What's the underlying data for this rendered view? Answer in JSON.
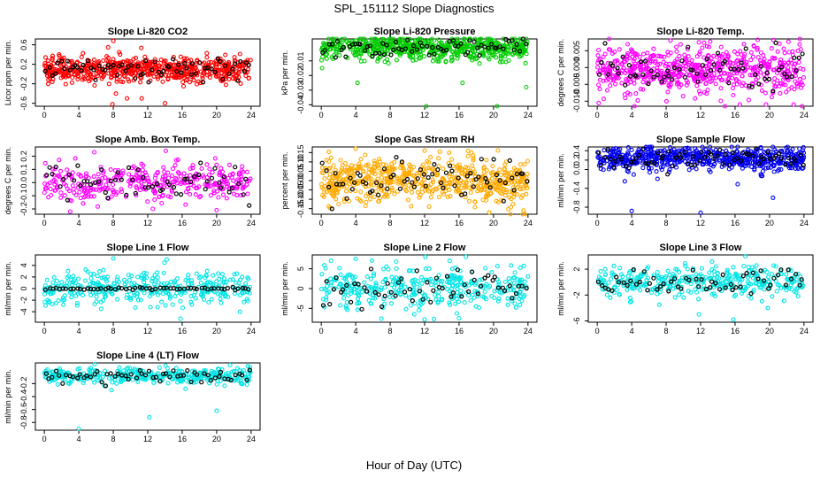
{
  "figure": {
    "title": "SPL_151112  Slope Diagnostics",
    "xlabel": "Hour of Day (UTC)"
  },
  "chart_data": [
    {
      "type": "scatter",
      "title": "Slope Li-820 CO2",
      "ylabel": "Licor ppm per min.",
      "xlim": [
        0,
        24
      ],
      "xticks": [
        "0",
        "4",
        "8",
        "12",
        "16",
        "20",
        "24"
      ],
      "yticks": [
        "-0.6",
        "-0.2",
        "0.2",
        "0.6"
      ],
      "ytick_values": [
        -0.6,
        -0.2,
        0.2,
        0.6
      ],
      "ylim": [
        -0.66,
        0.72
      ],
      "color": "#ff0000",
      "density": "dense",
      "center": 0.1,
      "spread": 0.13,
      "outliers": [
        [
          7.4,
          0.55
        ],
        [
          8.0,
          0.68
        ],
        [
          8.3,
          -0.4
        ],
        [
          9.6,
          -0.5
        ],
        [
          8.8,
          0.4
        ],
        [
          14.0,
          -0.6
        ],
        [
          7.9,
          -0.62
        ],
        [
          11.3,
          -0.5
        ]
      ]
    },
    {
      "type": "scatter",
      "title": "Slope Li-820 Pressure",
      "ylabel": "kPa per min.",
      "xlim": [
        0,
        24
      ],
      "xticks": [
        "0",
        "4",
        "8",
        "12",
        "16",
        "20",
        "24"
      ],
      "yticks": [
        "-0.04",
        "-0.03",
        "-0.02",
        "-0.01"
      ],
      "ytick_values": [
        -0.04,
        -0.03,
        -0.02,
        -0.01
      ],
      "ylim": [
        -0.041,
        0.005
      ],
      "color": "#00cc00",
      "density": "dense",
      "center": -0.001,
      "spread": 0.004,
      "outliers": [
        [
          4.2,
          -0.025
        ],
        [
          12.2,
          -0.041
        ],
        [
          16.4,
          -0.025
        ],
        [
          20.4,
          -0.041
        ],
        [
          23.8,
          -0.028
        ],
        [
          0.1,
          -0.015
        ]
      ]
    },
    {
      "type": "scatter",
      "title": "Slope Li-820 Temp.",
      "ylabel": "degrees C per min.",
      "xlim": [
        0,
        24
      ],
      "xticks": [
        "0",
        "4",
        "8",
        "12",
        "16",
        "20",
        "24"
      ],
      "yticks": [
        "-0.010",
        "-0.005",
        "0.000",
        "0.005"
      ],
      "ytick_values": [
        -0.01,
        -0.005,
        0.0,
        0.005
      ],
      "ylim": [
        -0.0115,
        0.0085
      ],
      "color": "#ff00ff",
      "density": "dense",
      "center": -0.0005,
      "spread": 0.0035,
      "outliers": [
        [
          8.5,
          0.008
        ],
        [
          3.2,
          -0.008
        ],
        [
          19.6,
          -0.011
        ],
        [
          22.8,
          -0.011
        ],
        [
          11.8,
          0.0075
        ]
      ]
    },
    {
      "type": "scatter",
      "title": "Slope Amb. Box Temp.",
      "ylabel": "degrees C per min.",
      "xlim": [
        0,
        24
      ],
      "xticks": [
        "0",
        "4",
        "8",
        "12",
        "16",
        "20",
        "24"
      ],
      "yticks": [
        "-0.2",
        "-0.1",
        "0.0",
        "0.1",
        "0.2"
      ],
      "ytick_values": [
        -0.2,
        -0.1,
        0.0,
        0.1,
        0.2
      ],
      "ylim": [
        -0.24,
        0.27
      ],
      "color": "#ff00ff",
      "density": "medium",
      "center": 0.0,
      "spread": 0.07,
      "outliers": [
        [
          12.6,
          -0.2
        ],
        [
          5.8,
          0.23
        ],
        [
          3.0,
          -0.22
        ],
        [
          20.0,
          -0.21
        ],
        [
          14.1,
          0.24
        ]
      ]
    },
    {
      "type": "scatter",
      "title": "Slope Gas Stream RH",
      "ylabel": "percent per min.",
      "xlim": [
        0,
        24
      ],
      "xticks": [
        "0",
        "4",
        "8",
        "12",
        "16",
        "20",
        "24"
      ],
      "yticks": [
        "-0.15",
        "-0.10",
        "-0.05",
        "0.00",
        "0.05",
        "0.10",
        "0.15"
      ],
      "ytick_values": [
        -0.15,
        -0.1,
        -0.05,
        0.0,
        0.05,
        0.1,
        0.15
      ],
      "ylim": [
        -0.18,
        0.18
      ],
      "color": "#ffaa00",
      "density": "dense",
      "center": 0.0,
      "spread": 0.06,
      "outliers": [
        [
          4.0,
          0.17
        ],
        [
          19.5,
          -0.17
        ],
        [
          12.0,
          0.16
        ],
        [
          23.5,
          -0.16
        ]
      ]
    },
    {
      "type": "scatter",
      "title": "Slope Sample Flow",
      "ylabel": "ml/min per min.",
      "xlim": [
        0,
        24
      ],
      "xticks": [
        "0",
        "4",
        "8",
        "12",
        "16",
        "20",
        "24"
      ],
      "yticks": [
        "-0.8",
        "-0.4",
        "0.0",
        "0.2",
        "0.4"
      ],
      "ytick_values": [
        -0.8,
        -0.4,
        0.0,
        0.2,
        0.4
      ],
      "ylim": [
        -0.95,
        0.48
      ],
      "color": "#0000ee",
      "density": "dense",
      "center": 0.22,
      "spread": 0.12,
      "outliers": [
        [
          4.0,
          -0.88
        ],
        [
          12.0,
          -0.92
        ],
        [
          20.4,
          -0.6
        ],
        [
          3.2,
          -0.25
        ],
        [
          17.5,
          0.42
        ],
        [
          7.0,
          -0.2
        ]
      ]
    },
    {
      "type": "scatter",
      "title": "Slope Line 1 Flow",
      "ylabel": "ml/min per min.",
      "xlim": [
        0,
        24
      ],
      "xticks": [
        "0",
        "4",
        "8",
        "12",
        "16",
        "20",
        "24"
      ],
      "yticks": [
        "-4",
        "-2",
        "0",
        "2",
        "4"
      ],
      "ytick_values": [
        -4,
        -2,
        0,
        2,
        4
      ],
      "ylim": [
        -5.8,
        5.8
      ],
      "color": "#00e5e5",
      "density": "medium",
      "center": 0.0,
      "spread": 1.4,
      "black_flat": true,
      "outliers": [
        [
          8.0,
          5.2
        ],
        [
          14.2,
          5.0
        ],
        [
          15.8,
          -5.2
        ],
        [
          6.6,
          -3.5
        ],
        [
          2.2,
          -2.8
        ]
      ]
    },
    {
      "type": "scatter",
      "title": "Slope Line 2 Flow",
      "ylabel": "ml/min per min.",
      "xlim": [
        0,
        24
      ],
      "xticks": [
        "0",
        "4",
        "8",
        "12",
        "16",
        "20",
        "24"
      ],
      "yticks": [
        "-5",
        "0",
        "5"
      ],
      "ytick_values": [
        -5,
        0,
        5
      ],
      "ylim": [
        -8.5,
        8.5
      ],
      "color": "#00e5e5",
      "density": "medium",
      "center": 0.2,
      "spread": 2.6,
      "outliers": [
        [
          4.0,
          7.5
        ],
        [
          16.8,
          8.0
        ],
        [
          16.0,
          -7.5
        ],
        [
          12.0,
          -7.8
        ],
        [
          10.8,
          -6.5
        ]
      ]
    },
    {
      "type": "scatter",
      "title": "Slope Line 3 Flow",
      "ylabel": "ml/min per min.",
      "xlim": [
        0,
        24
      ],
      "xticks": [
        "0",
        "4",
        "8",
        "12",
        "16",
        "20",
        "24"
      ],
      "yticks": [
        "-6",
        "-2",
        "2"
      ],
      "ytick_values": [
        -6,
        -2,
        2
      ],
      "ylim": [
        -6.2,
        4.2
      ],
      "color": "#00e5e5",
      "density": "medium",
      "center": 0.0,
      "spread": 1.2,
      "outliers": [
        [
          17.2,
          4.0
        ],
        [
          11.8,
          -5.0
        ],
        [
          15.8,
          -5.8
        ],
        [
          19.8,
          -4.0
        ],
        [
          7.2,
          -3.5
        ]
      ]
    },
    {
      "type": "scatter",
      "title": "Slope Line 4 (LT) Flow",
      "ylabel": "ml/min per min.",
      "xlim": [
        0,
        24
      ],
      "xticks": [
        "0",
        "4",
        "8",
        "12",
        "16",
        "20",
        "24"
      ],
      "yticks": [
        "-0.8",
        "-0.6",
        "-0.4",
        "-0.2"
      ],
      "ytick_values": [
        -0.8,
        -0.6,
        -0.4,
        -0.2
      ],
      "ylim": [
        -0.92,
        0.12
      ],
      "color": "#00e5e5",
      "density": "medium",
      "center": -0.08,
      "spread": 0.06,
      "outliers": [
        [
          4.0,
          -0.9
        ],
        [
          12.2,
          -0.72
        ],
        [
          20.0,
          -0.62
        ],
        [
          7.8,
          -0.3
        ],
        [
          16.4,
          -0.28
        ]
      ]
    }
  ]
}
